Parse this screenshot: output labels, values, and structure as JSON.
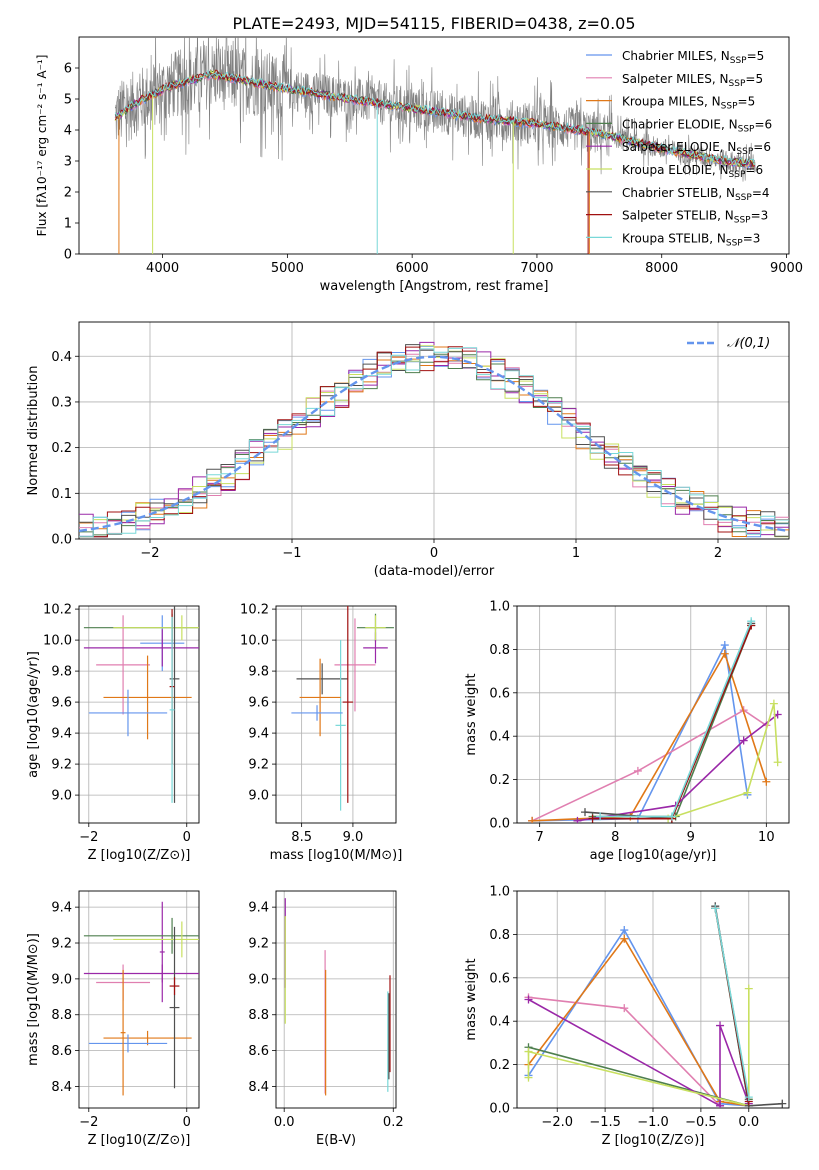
{
  "figure_title": "PLATE=2493, MJD=54115, FIBERID=0438, z=0.05",
  "colors": [
    "#6495ed",
    "#e07fb0",
    "#e07818",
    "#4e7f4e",
    "#9a28a8",
    "#c8e060",
    "#505050",
    "#a01010",
    "#78d8d8"
  ],
  "legend_top": [
    {
      "label": "Chabrier MILES, N",
      "sub": "SSP",
      "tail": "=5"
    },
    {
      "label": "Salpeter MILES, N",
      "sub": "SSP",
      "tail": "=5"
    },
    {
      "label": "Kroupa MILES, N",
      "sub": "SSP",
      "tail": "=5"
    },
    {
      "label": "Chabrier ELODIE, N",
      "sub": "SSP",
      "tail": "=6"
    },
    {
      "label": "Salpeter ELODIE, N",
      "sub": "SSP",
      "tail": "=6"
    },
    {
      "label": "Kroupa ELODIE, N",
      "sub": "SSP",
      "tail": "=6"
    },
    {
      "label": "Chabrier STELIB, N",
      "sub": "SSP",
      "tail": "=4"
    },
    {
      "label": "Salpeter STELIB, N",
      "sub": "SSP",
      "tail": "=3"
    },
    {
      "label": "Kroupa STELIB, N",
      "sub": "SSP",
      "tail": "=3"
    }
  ],
  "chart_data": [
    {
      "id": "spectrum",
      "type": "line",
      "xlabel": "wavelength [Angstrom, rest frame]",
      "ylabel": "Flux [fλ10⁻¹⁷ erg cm⁻² s⁻¹ A⁻¹]",
      "xlim": [
        3330,
        9020
      ],
      "ylim": [
        0,
        7
      ],
      "xticks": [
        4000,
        5000,
        6000,
        7000,
        8000,
        9000
      ],
      "yticks": [
        0,
        1,
        2,
        3,
        4,
        5,
        6
      ],
      "continuum": [
        [
          3620,
          4.4
        ],
        [
          3800,
          4.9
        ],
        [
          4050,
          5.4
        ],
        [
          4400,
          5.8
        ],
        [
          4900,
          5.4
        ],
        [
          5500,
          5.0
        ],
        [
          6000,
          4.7
        ],
        [
          6500,
          4.4
        ],
        [
          7000,
          4.2
        ],
        [
          7500,
          3.9
        ],
        [
          8000,
          3.4
        ],
        [
          8500,
          3.0
        ],
        [
          8750,
          2.9
        ]
      ],
      "data_range": [
        3620,
        8750
      ]
    },
    {
      "id": "residuals",
      "type": "step",
      "xlabel": "(data-model)/error",
      "ylabel": "Normed distribution",
      "xlim": [
        -2.5,
        2.5
      ],
      "ylim": [
        0,
        0.475
      ],
      "xticks": [
        -2,
        -1,
        0,
        1,
        2
      ],
      "yticks": [
        0.0,
        0.1,
        0.2,
        0.3,
        0.4
      ],
      "reference": {
        "label": "𝒩(0,1)",
        "mean": 0,
        "sigma": 1
      }
    },
    {
      "id": "age_vs_Z",
      "type": "errorbar",
      "xlabel": "Z [log10(Z/Z⊙)]",
      "ylabel": "age  [log10(age/yr)]",
      "xlim": [
        -2.2,
        0.25
      ],
      "ylim": [
        8.82,
        10.22
      ],
      "xticks": [
        -2,
        0
      ],
      "yticks": [
        9.0,
        9.2,
        9.4,
        9.6,
        9.8,
        10.0,
        10.2
      ],
      "points": [
        {
          "x": -0.5,
          "y": 9.98,
          "xerr": 0.45,
          "yerr": 0.18,
          "c": 0
        },
        {
          "x": -1.3,
          "y": 9.84,
          "xerr": 0.55,
          "yerr": 0.32,
          "c": 1
        },
        {
          "x": -0.8,
          "y": 9.63,
          "xerr": 0.9,
          "yerr": 0.27,
          "c": 2
        },
        {
          "x": -0.3,
          "y": 10.08,
          "xerr": 1.8,
          "yerr": 0.09,
          "c": 3
        },
        {
          "x": -0.5,
          "y": 9.95,
          "xerr": 1.6,
          "yerr": 0.12,
          "c": 4
        },
        {
          "x": -0.1,
          "y": 10.08,
          "xerr": 1.4,
          "yerr": 0.08,
          "c": 5
        },
        {
          "x": -0.25,
          "y": 9.75,
          "xerr": 0.1,
          "yerr": 0.8,
          "c": 6
        },
        {
          "x": -0.3,
          "y": 9.7,
          "xerr": 0.05,
          "yerr": 0.5,
          "c": 7
        },
        {
          "x": -0.3,
          "y": 9.55,
          "xerr": 0.05,
          "yerr": 0.6,
          "c": 8
        },
        {
          "x": -1.2,
          "y": 9.53,
          "xerr": 0.8,
          "yerr": 0.15,
          "c": 0
        }
      ]
    },
    {
      "id": "age_vs_mass",
      "type": "errorbar",
      "xlabel": "mass [log10(M/M⊙)]",
      "ylabel": "",
      "xlim": [
        8.25,
        9.42
      ],
      "ylim": [
        8.82,
        10.22
      ],
      "xticks": [
        8.5,
        9.0
      ],
      "yticks": [
        9.0,
        9.2,
        9.4,
        9.6,
        9.8,
        10.0,
        10.2
      ],
      "points": [
        {
          "x": 9.22,
          "y": 10.08,
          "xerr": 0.18,
          "yerr": 0.09,
          "c": 3
        },
        {
          "x": 9.22,
          "y": 9.95,
          "xerr": 0.12,
          "yerr": 0.1,
          "c": 4
        },
        {
          "x": 9.22,
          "y": 10.08,
          "xerr": 0.1,
          "yerr": 0.08,
          "c": 5
        },
        {
          "x": 9.02,
          "y": 9.84,
          "xerr": 0.2,
          "yerr": 0.3,
          "c": 1
        },
        {
          "x": 8.7,
          "y": 9.75,
          "xerr": 0.25,
          "yerr": 0.1,
          "c": 6
        },
        {
          "x": 8.95,
          "y": 9.6,
          "xerr": 0.05,
          "yerr": 0.65,
          "c": 7
        },
        {
          "x": 8.88,
          "y": 9.45,
          "xerr": 0.05,
          "yerr": 0.55,
          "c": 8
        },
        {
          "x": 8.68,
          "y": 9.63,
          "xerr": 0.2,
          "yerr": 0.25,
          "c": 2
        },
        {
          "x": 8.65,
          "y": 9.53,
          "xerr": 0.25,
          "yerr": 0.05,
          "c": 0
        }
      ]
    },
    {
      "id": "weight_vs_age",
      "type": "line",
      "xlabel": "age  [log10(age/yr)]",
      "ylabel": "mass weight",
      "xlim": [
        6.7,
        10.3
      ],
      "ylim": [
        0,
        1.0
      ],
      "xticks": [
        7,
        8,
        9,
        10
      ],
      "yticks": [
        0.0,
        0.2,
        0.4,
        0.6,
        0.8,
        1.0
      ],
      "series": [
        {
          "c": 0,
          "points": [
            [
              6.9,
              0.01
            ],
            [
              8.3,
              0.02
            ],
            [
              9.45,
              0.82
            ],
            [
              9.75,
              0.13
            ]
          ]
        },
        {
          "c": 1,
          "points": [
            [
              6.9,
              0.01
            ],
            [
              8.3,
              0.24
            ],
            [
              9.7,
              0.52
            ],
            [
              10.0,
              0.45
            ]
          ]
        },
        {
          "c": 2,
          "points": [
            [
              6.9,
              0.01
            ],
            [
              8.2,
              0.03
            ],
            [
              9.45,
              0.78
            ],
            [
              10.0,
              0.19
            ]
          ]
        },
        {
          "c": 3,
          "points": [
            [
              7.7,
              0.03
            ],
            [
              8.8,
              0.03
            ],
            [
              9.8,
              0.91
            ]
          ]
        },
        {
          "c": 4,
          "points": [
            [
              7.5,
              0.01
            ],
            [
              8.8,
              0.08
            ],
            [
              9.7,
              0.38
            ],
            [
              10.15,
              0.5
            ]
          ]
        },
        {
          "c": 5,
          "points": [
            [
              8.7,
              0.02
            ],
            [
              9.75,
              0.14
            ],
            [
              10.1,
              0.55
            ],
            [
              10.15,
              0.28
            ]
          ]
        },
        {
          "c": 6,
          "points": [
            [
              7.6,
              0.05
            ],
            [
              8.75,
              0.02
            ],
            [
              9.8,
              0.92
            ]
          ]
        },
        {
          "c": 7,
          "points": [
            [
              7.7,
              0.02
            ],
            [
              8.75,
              0.02
            ],
            [
              9.8,
              0.91
            ]
          ]
        },
        {
          "c": 8,
          "points": [
            [
              7.8,
              0.03
            ],
            [
              8.75,
              0.03
            ],
            [
              9.8,
              0.93
            ]
          ]
        }
      ]
    },
    {
      "id": "mass_vs_Z",
      "type": "errorbar",
      "xlabel": "Z [log10(Z/Z⊙)]",
      "ylabel": "mass [log10(M/M⊙)]",
      "xlim": [
        -2.2,
        0.25
      ],
      "ylim": [
        8.28,
        9.49
      ],
      "xticks": [
        -2,
        0
      ],
      "yticks": [
        8.4,
        8.6,
        8.8,
        9.0,
        9.2,
        9.4
      ],
      "points": [
        {
          "x": -0.5,
          "y": 9.15,
          "xerr": 0.05,
          "yerr": 0.28,
          "c": 4
        },
        {
          "x": -1.3,
          "y": 8.98,
          "xerr": 0.55,
          "yerr": 0.1,
          "c": 1
        },
        {
          "x": -0.8,
          "y": 8.67,
          "xerr": 0.9,
          "yerr": 0.04,
          "c": 2
        },
        {
          "x": -0.3,
          "y": 9.24,
          "xerr": 1.8,
          "yerr": 0.1,
          "c": 3
        },
        {
          "x": -0.5,
          "y": 9.03,
          "xerr": 1.6,
          "yerr": 0.05,
          "c": 4
        },
        {
          "x": -0.1,
          "y": 9.22,
          "xerr": 1.4,
          "yerr": 0.1,
          "c": 5
        },
        {
          "x": -0.25,
          "y": 8.84,
          "xerr": 0.1,
          "yerr": 0.45,
          "c": 6
        },
        {
          "x": -0.25,
          "y": 8.96,
          "xerr": 0.1,
          "yerr": 0.05,
          "c": 7
        },
        {
          "x": -1.2,
          "y": 8.64,
          "xerr": 0.8,
          "yerr": 0.05,
          "c": 0
        },
        {
          "x": -1.3,
          "y": 8.7,
          "xerr": 0.05,
          "yerr": 0.35,
          "c": 2
        }
      ]
    },
    {
      "id": "mass_vs_ebv",
      "type": "errorbar",
      "xlabel": "E(B-V)",
      "ylabel": "",
      "xlim": [
        -0.015,
        0.205
      ],
      "ylim": [
        8.28,
        9.49
      ],
      "xticks": [
        0.0,
        0.2
      ],
      "yticks": [
        8.4,
        8.6,
        8.8,
        9.0,
        9.2,
        9.4
      ],
      "points": [
        {
          "x": 0.002,
          "y": 9.2,
          "xerr": 0,
          "yerr": 0.25,
          "c": 4
        },
        {
          "x": 0.002,
          "y": 9.05,
          "xerr": 0,
          "yerr": 0.3,
          "c": 5
        },
        {
          "x": 0.075,
          "y": 8.76,
          "xerr": 0,
          "yerr": 0.4,
          "c": 1
        },
        {
          "x": 0.076,
          "y": 8.7,
          "xerr": 0,
          "yerr": 0.35,
          "c": 2
        },
        {
          "x": 0.19,
          "y": 8.65,
          "xerr": 0,
          "yerr": 0.28,
          "c": 8
        },
        {
          "x": 0.194,
          "y": 8.75,
          "xerr": 0,
          "yerr": 0.27,
          "c": 7
        },
        {
          "x": 0.192,
          "y": 8.68,
          "xerr": 0,
          "yerr": 0.24,
          "c": 6
        }
      ]
    },
    {
      "id": "weight_vs_Z",
      "type": "line",
      "xlabel": "Z [log10(Z/Z⊙)]",
      "ylabel": "mass weight",
      "xlim": [
        -2.42,
        0.42
      ],
      "ylim": [
        0,
        1.0
      ],
      "xticks": [
        -2.0,
        -1.5,
        -1.0,
        -0.5,
        0.0
      ],
      "yticks": [
        0.0,
        0.2,
        0.4,
        0.6,
        0.8,
        1.0
      ],
      "series": [
        {
          "c": 0,
          "points": [
            [
              -2.3,
              0.15
            ],
            [
              -1.3,
              0.82
            ],
            [
              -0.3,
              0.02
            ],
            [
              0.0,
              0.01
            ]
          ]
        },
        {
          "c": 1,
          "points": [
            [
              -2.3,
              0.51
            ],
            [
              -1.3,
              0.46
            ],
            [
              -0.3,
              0.01
            ]
          ]
        },
        {
          "c": 2,
          "points": [
            [
              -2.3,
              0.2
            ],
            [
              -1.3,
              0.78
            ],
            [
              -0.3,
              0.03
            ],
            [
              0.0,
              0.01
            ]
          ]
        },
        {
          "c": 3,
          "points": [
            [
              -2.3,
              0.28
            ],
            [
              0.0,
              0.01
            ],
            [
              -0.35,
              0.92
            ],
            [
              0.0,
              0.04
            ]
          ]
        },
        {
          "c": 4,
          "points": [
            [
              -2.3,
              0.5
            ],
            [
              -0.3,
              0.01
            ],
            [
              -0.3,
              0.38
            ],
            [
              0.0,
              0.02
            ]
          ]
        },
        {
          "c": 5,
          "points": [
            [
              -2.3,
              0.14
            ],
            [
              -2.3,
              0.26
            ],
            [
              0.0,
              0.01
            ],
            [
              0.0,
              0.55
            ]
          ]
        },
        {
          "c": 6,
          "points": [
            [
              -0.35,
              0.93
            ],
            [
              0.0,
              0.01
            ],
            [
              0.35,
              0.02
            ]
          ]
        },
        {
          "c": 7,
          "points": [
            [
              -0.35,
              0.92
            ],
            [
              0.0,
              0.03
            ]
          ]
        },
        {
          "c": 8,
          "points": [
            [
              -0.35,
              0.92
            ],
            [
              0.0,
              0.05
            ]
          ]
        }
      ]
    }
  ]
}
